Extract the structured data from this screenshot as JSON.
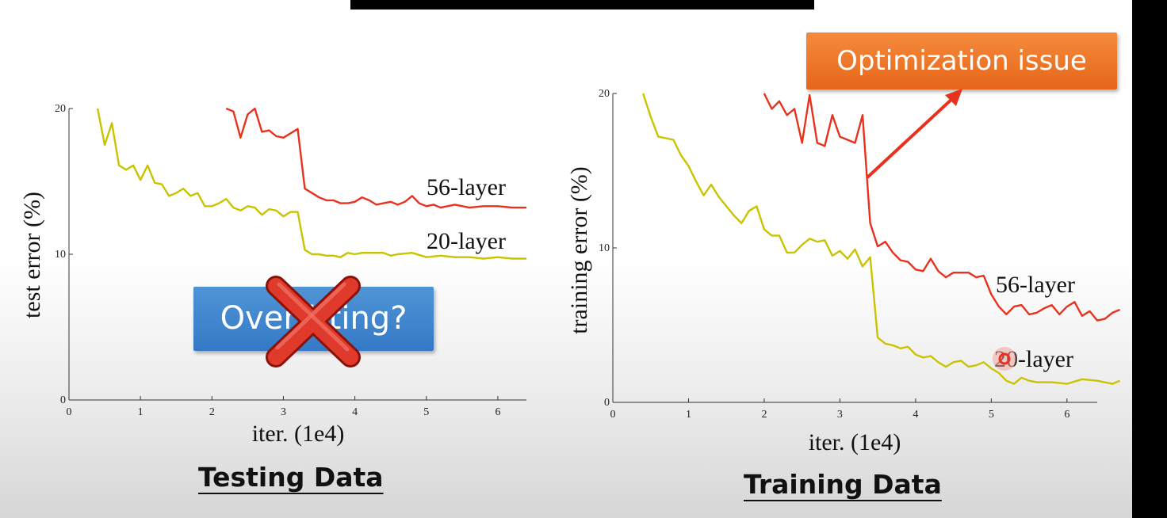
{
  "subtitle_text": "",
  "annotations": {
    "overfitting_text": "Overfitting?",
    "optimization_text": "Optimization issue",
    "overfit_box_color": "#3f88d2",
    "optimization_box_color": "#f07a2e",
    "cross_icon": "cross-icon",
    "arrow_icon": "arrow-icon"
  },
  "captions": {
    "left": "Testing Data",
    "right": "Training Data"
  },
  "chart_data": [
    {
      "type": "line",
      "title": "",
      "xlabel": "iter. (1e4)",
      "ylabel": "test error (%)",
      "xlim": [
        0,
        6.4
      ],
      "ylim": [
        0,
        20
      ],
      "xticks": [
        0,
        1,
        2,
        3,
        4,
        5,
        6
      ],
      "yticks": [
        0,
        10,
        20
      ],
      "grid": false,
      "series": [
        {
          "name": "56-layer",
          "color": "#e8321e",
          "points": [
            [
              2.2,
              20
            ],
            [
              2.3,
              19.8
            ],
            [
              2.4,
              18
            ],
            [
              2.5,
              19.6
            ],
            [
              2.6,
              20
            ],
            [
              2.7,
              18.4
            ],
            [
              2.8,
              18.5
            ],
            [
              2.9,
              18.1
            ],
            [
              3.0,
              18.0
            ],
            [
              3.1,
              18.3
            ],
            [
              3.2,
              18.6
            ],
            [
              3.3,
              14.5
            ],
            [
              3.4,
              14.2
            ],
            [
              3.5,
              13.9
            ],
            [
              3.6,
              13.7
            ],
            [
              3.7,
              13.7
            ],
            [
              3.8,
              13.5
            ],
            [
              3.9,
              13.5
            ],
            [
              4.0,
              13.6
            ],
            [
              4.1,
              13.9
            ],
            [
              4.2,
              13.7
            ],
            [
              4.3,
              13.4
            ],
            [
              4.4,
              13.5
            ],
            [
              4.5,
              13.6
            ],
            [
              4.6,
              13.4
            ],
            [
              4.7,
              13.6
            ],
            [
              4.8,
              14.0
            ],
            [
              4.9,
              13.5
            ],
            [
              5.0,
              13.3
            ],
            [
              5.1,
              13.4
            ],
            [
              5.2,
              13.2
            ],
            [
              5.4,
              13.4
            ],
            [
              5.6,
              13.2
            ],
            [
              5.8,
              13.3
            ],
            [
              6.0,
              13.3
            ],
            [
              6.2,
              13.2
            ],
            [
              6.4,
              13.2
            ]
          ]
        },
        {
          "name": "20-layer",
          "color": "#c9c400",
          "points": [
            [
              0.4,
              20
            ],
            [
              0.5,
              17.5
            ],
            [
              0.6,
              19
            ],
            [
              0.7,
              16.1
            ],
            [
              0.8,
              15.8
            ],
            [
              0.9,
              16.1
            ],
            [
              1.0,
              15.1
            ],
            [
              1.1,
              16.1
            ],
            [
              1.2,
              14.9
            ],
            [
              1.3,
              14.8
            ],
            [
              1.4,
              14.0
            ],
            [
              1.5,
              14.2
            ],
            [
              1.6,
              14.5
            ],
            [
              1.7,
              14.0
            ],
            [
              1.8,
              14.2
            ],
            [
              1.9,
              13.3
            ],
            [
              2.0,
              13.3
            ],
            [
              2.1,
              13.5
            ],
            [
              2.2,
              13.8
            ],
            [
              2.3,
              13.2
            ],
            [
              2.4,
              13.0
            ],
            [
              2.5,
              13.3
            ],
            [
              2.6,
              13.2
            ],
            [
              2.7,
              12.7
            ],
            [
              2.8,
              13.1
            ],
            [
              2.9,
              13.0
            ],
            [
              3.0,
              12.6
            ],
            [
              3.1,
              12.9
            ],
            [
              3.2,
              12.9
            ],
            [
              3.3,
              10.3
            ],
            [
              3.4,
              10.0
            ],
            [
              3.5,
              10.0
            ],
            [
              3.6,
              9.9
            ],
            [
              3.7,
              9.9
            ],
            [
              3.8,
              9.8
            ],
            [
              3.9,
              10.1
            ],
            [
              4.0,
              10.0
            ],
            [
              4.1,
              10.1
            ],
            [
              4.2,
              10.1
            ],
            [
              4.3,
              10.1
            ],
            [
              4.4,
              10.1
            ],
            [
              4.5,
              9.9
            ],
            [
              4.6,
              10.0
            ],
            [
              4.8,
              10.1
            ],
            [
              5.0,
              9.8
            ],
            [
              5.2,
              9.9
            ],
            [
              5.4,
              9.8
            ],
            [
              5.6,
              9.8
            ],
            [
              5.8,
              9.7
            ],
            [
              6.0,
              9.8
            ],
            [
              6.2,
              9.7
            ],
            [
              6.4,
              9.7
            ]
          ]
        }
      ]
    },
    {
      "type": "line",
      "title": "",
      "xlabel": "iter. (1e4)",
      "ylabel": "training error (%)",
      "xlim": [
        0,
        6.4
      ],
      "ylim": [
        0,
        20
      ],
      "xticks": [
        0,
        1,
        2,
        3,
        4,
        5,
        6
      ],
      "yticks": [
        0,
        10,
        20
      ],
      "grid": false,
      "series": [
        {
          "name": "56-layer",
          "color": "#e8321e",
          "points": [
            [
              2.0,
              20
            ],
            [
              2.1,
              19.0
            ],
            [
              2.2,
              19.5
            ],
            [
              2.3,
              18.6
            ],
            [
              2.4,
              19.0
            ],
            [
              2.5,
              16.8
            ],
            [
              2.6,
              19.9
            ],
            [
              2.7,
              16.8
            ],
            [
              2.8,
              16.6
            ],
            [
              2.9,
              18.6
            ],
            [
              3.0,
              17.2
            ],
            [
              3.1,
              17.0
            ],
            [
              3.2,
              16.8
            ],
            [
              3.3,
              18.6
            ],
            [
              3.4,
              11.6
            ],
            [
              3.5,
              10.1
            ],
            [
              3.6,
              10.4
            ],
            [
              3.7,
              9.7
            ],
            [
              3.8,
              9.2
            ],
            [
              3.9,
              9.1
            ],
            [
              4.0,
              8.6
            ],
            [
              4.1,
              8.5
            ],
            [
              4.2,
              9.3
            ],
            [
              4.3,
              8.5
            ],
            [
              4.4,
              8.1
            ],
            [
              4.5,
              8.4
            ],
            [
              4.6,
              8.4
            ],
            [
              4.7,
              8.4
            ],
            [
              4.8,
              8.1
            ],
            [
              4.9,
              8.2
            ],
            [
              5.0,
              7.0
            ],
            [
              5.1,
              6.2
            ],
            [
              5.2,
              5.7
            ],
            [
              5.3,
              6.2
            ],
            [
              5.4,
              6.3
            ],
            [
              5.5,
              5.7
            ],
            [
              5.6,
              5.8
            ],
            [
              5.7,
              6.1
            ],
            [
              5.8,
              6.3
            ],
            [
              5.9,
              5.7
            ],
            [
              6.0,
              6.2
            ],
            [
              6.1,
              6.5
            ],
            [
              6.2,
              5.6
            ],
            [
              6.3,
              5.9
            ],
            [
              6.4,
              5.3
            ],
            [
              6.5,
              5.4
            ],
            [
              6.6,
              5.8
            ],
            [
              6.7,
              6.0
            ]
          ]
        },
        {
          "name": "20-layer",
          "color": "#c9c400",
          "points": [
            [
              0.4,
              20
            ],
            [
              0.5,
              18.5
            ],
            [
              0.6,
              17.2
            ],
            [
              0.7,
              17.1
            ],
            [
              0.8,
              17.0
            ],
            [
              0.9,
              16.0
            ],
            [
              1.0,
              15.3
            ],
            [
              1.1,
              14.3
            ],
            [
              1.2,
              13.4
            ],
            [
              1.3,
              14.1
            ],
            [
              1.4,
              13.3
            ],
            [
              1.5,
              12.7
            ],
            [
              1.6,
              12.1
            ],
            [
              1.7,
              11.6
            ],
            [
              1.8,
              12.4
            ],
            [
              1.9,
              12.7
            ],
            [
              2.0,
              11.2
            ],
            [
              2.1,
              10.8
            ],
            [
              2.2,
              10.8
            ],
            [
              2.3,
              9.7
            ],
            [
              2.4,
              9.7
            ],
            [
              2.5,
              10.2
            ],
            [
              2.6,
              10.6
            ],
            [
              2.7,
              10.4
            ],
            [
              2.8,
              10.5
            ],
            [
              2.9,
              9.5
            ],
            [
              3.0,
              9.8
            ],
            [
              3.1,
              9.3
            ],
            [
              3.2,
              9.9
            ],
            [
              3.3,
              8.8
            ],
            [
              3.4,
              9.4
            ],
            [
              3.5,
              4.2
            ],
            [
              3.6,
              3.8
            ],
            [
              3.7,
              3.7
            ],
            [
              3.8,
              3.5
            ],
            [
              3.9,
              3.6
            ],
            [
              4.0,
              3.1
            ],
            [
              4.1,
              2.9
            ],
            [
              4.2,
              3.0
            ],
            [
              4.3,
              2.6
            ],
            [
              4.4,
              2.3
            ],
            [
              4.5,
              2.6
            ],
            [
              4.6,
              2.7
            ],
            [
              4.7,
              2.3
            ],
            [
              4.8,
              2.4
            ],
            [
              4.9,
              2.6
            ],
            [
              5.0,
              2.2
            ],
            [
              5.1,
              1.9
            ],
            [
              5.2,
              1.4
            ],
            [
              5.3,
              1.2
            ],
            [
              5.4,
              1.6
            ],
            [
              5.5,
              1.4
            ],
            [
              5.6,
              1.3
            ],
            [
              5.8,
              1.3
            ],
            [
              6.0,
              1.2
            ],
            [
              6.2,
              1.5
            ],
            [
              6.4,
              1.4
            ],
            [
              6.6,
              1.2
            ],
            [
              6.7,
              1.4
            ]
          ]
        }
      ]
    }
  ]
}
